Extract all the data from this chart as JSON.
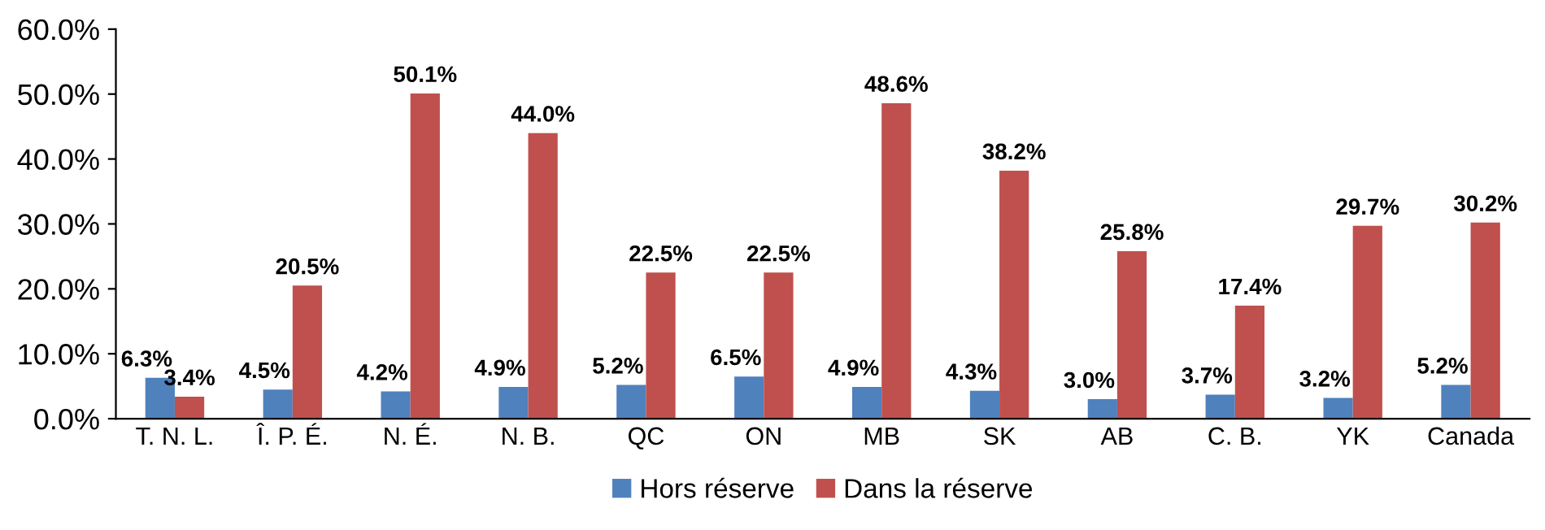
{
  "chart_data": {
    "type": "bar",
    "categories": [
      "T. N. L.",
      "Î. P. É.",
      "N. É.",
      "N. B.",
      "QC",
      "ON",
      "MB",
      "SK",
      "AB",
      "C. B.",
      "YK",
      "Canada"
    ],
    "series": [
      {
        "name": "Hors réserve",
        "color": "#4f81bd",
        "values": [
          6.3,
          4.5,
          4.2,
          4.9,
          5.2,
          6.5,
          4.9,
          4.3,
          3.0,
          3.7,
          3.2,
          5.2
        ],
        "value_labels": [
          "6.3%",
          "4.5%",
          "4.2%",
          "4.9%",
          "5.2%",
          "6.5%",
          "4.9%",
          "4.3%",
          "3.0%",
          "3.7%",
          "3.2%",
          "5.2%"
        ]
      },
      {
        "name": "Dans la réserve",
        "color": "#c0504d",
        "values": [
          3.4,
          20.5,
          50.1,
          44.0,
          22.5,
          22.5,
          48.6,
          38.2,
          25.8,
          17.4,
          29.7,
          30.2
        ],
        "value_labels": [
          "3.4%",
          "20.5%",
          "50.1%",
          "44.0%",
          "22.5%",
          "22.5%",
          "48.6%",
          "38.2%",
          "25.8%",
          "17.4%",
          "29.7%",
          "30.2%"
        ]
      }
    ],
    "ylim": [
      0,
      60
    ],
    "yticks": [
      {
        "value": 0,
        "label": "0.0%"
      },
      {
        "value": 10,
        "label": "10.0%"
      },
      {
        "value": 20,
        "label": "20.0%"
      },
      {
        "value": 30,
        "label": "30.0%"
      },
      {
        "value": 40,
        "label": "40.0%"
      },
      {
        "value": 50,
        "label": "50.0%"
      },
      {
        "value": 60,
        "label": "60.0%"
      }
    ],
    "grid": false,
    "legend": "bottom"
  }
}
